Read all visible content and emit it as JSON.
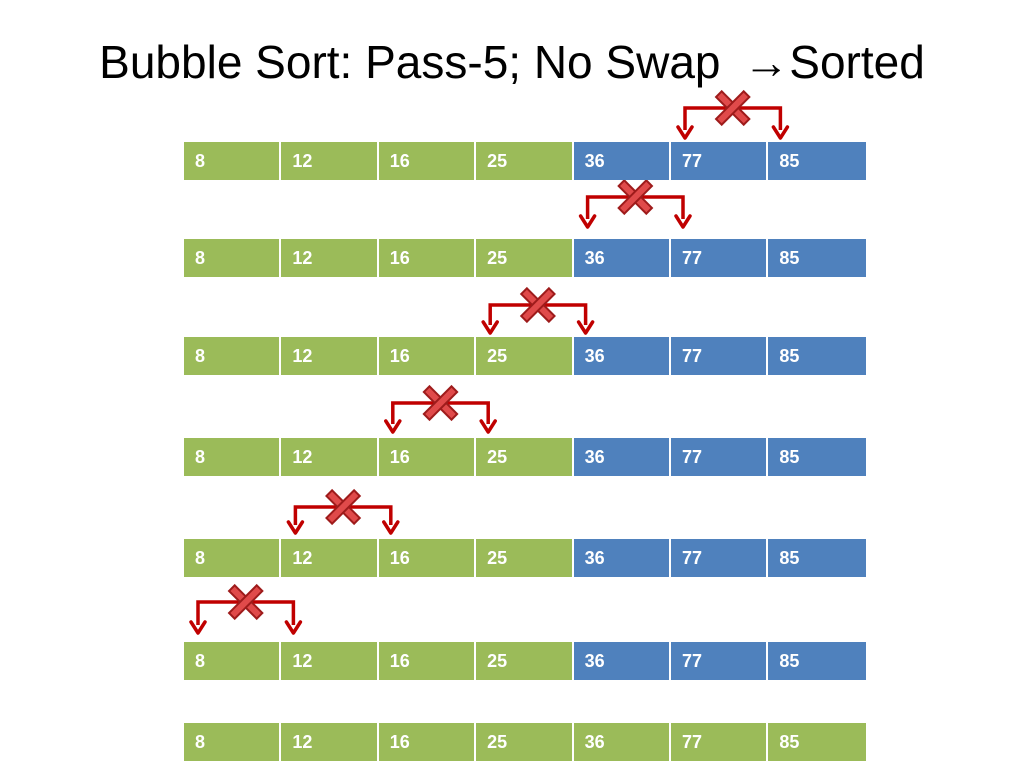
{
  "title": {
    "text": "Bubble Sort: Pass-5; No Swap ",
    "arrow": "→",
    "suffix": "Sorted"
  },
  "colors": {
    "unsorted": "#9bbb59",
    "sorted": "#4f81bd",
    "comparison_arrow": "#c00000",
    "no_swap_mark": "#e04a4a"
  },
  "rows": [
    {
      "values": [
        "8",
        "12",
        "16",
        "25",
        "36",
        "77",
        "85"
      ],
      "sorted_from_index": 4,
      "compare": [
        5,
        6
      ],
      "swap": false
    },
    {
      "values": [
        "8",
        "12",
        "16",
        "25",
        "36",
        "77",
        "85"
      ],
      "sorted_from_index": 4,
      "compare": [
        4,
        5
      ],
      "swap": false
    },
    {
      "values": [
        "8",
        "12",
        "16",
        "25",
        "36",
        "77",
        "85"
      ],
      "sorted_from_index": 4,
      "compare": [
        3,
        4
      ],
      "swap": false
    },
    {
      "values": [
        "8",
        "12",
        "16",
        "25",
        "36",
        "77",
        "85"
      ],
      "sorted_from_index": 4,
      "compare": [
        2,
        3
      ],
      "swap": false
    },
    {
      "values": [
        "8",
        "12",
        "16",
        "25",
        "36",
        "77",
        "85"
      ],
      "sorted_from_index": 4,
      "compare": [
        1,
        2
      ],
      "swap": false
    },
    {
      "values": [
        "8",
        "12",
        "16",
        "25",
        "36",
        "77",
        "85"
      ],
      "sorted_from_index": 4,
      "compare": [
        0,
        1
      ],
      "swap": false
    },
    {
      "values": [
        "8",
        "12",
        "16",
        "25",
        "36",
        "77",
        "85"
      ],
      "sorted_from_index": 7,
      "compare": null,
      "swap": false
    }
  ]
}
